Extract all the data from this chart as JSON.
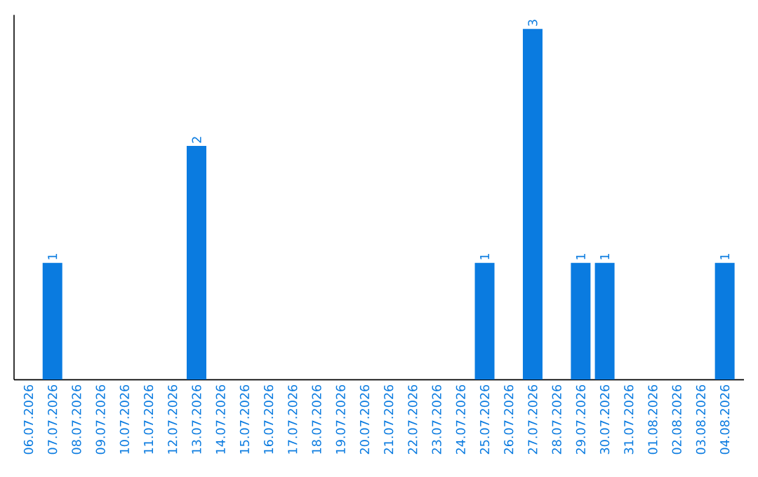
{
  "chart_data": {
    "type": "bar",
    "categories": [
      "06.07.2026",
      "07.07.2026",
      "08.07.2026",
      "09.07.2026",
      "10.07.2026",
      "11.07.2026",
      "12.07.2026",
      "13.07.2026",
      "14.07.2026",
      "15.07.2026",
      "16.07.2026",
      "17.07.2026",
      "18.07.2026",
      "19.07.2026",
      "20.07.2026",
      "21.07.2026",
      "22.07.2026",
      "23.07.2026",
      "24.07.2026",
      "25.07.2026",
      "26.07.2026",
      "27.07.2026",
      "28.07.2026",
      "29.07.2026",
      "30.07.2026",
      "31.07.2026",
      "01.08.2026",
      "02.08.2026",
      "03.08.2026",
      "04.08.2026"
    ],
    "values": [
      0,
      1,
      0,
      0,
      0,
      0,
      0,
      2,
      0,
      0,
      0,
      0,
      0,
      0,
      0,
      0,
      0,
      0,
      0,
      1,
      0,
      3,
      0,
      1,
      1,
      0,
      0,
      0,
      0,
      1
    ],
    "value_labels": [
      null,
      "1",
      null,
      null,
      null,
      null,
      null,
      "2",
      null,
      null,
      null,
      null,
      null,
      null,
      null,
      null,
      null,
      null,
      null,
      "1",
      null,
      "3",
      null,
      "1",
      "1",
      null,
      null,
      null,
      null,
      "1"
    ],
    "color": "#0a7be0",
    "ylim": [
      0,
      3.12
    ],
    "tick_labels": "x",
    "grid": false
  }
}
